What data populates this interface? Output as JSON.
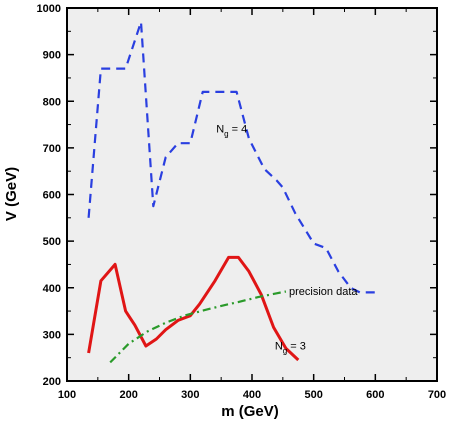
{
  "chart_data": {
    "type": "line",
    "xlabel": "m (GeV)",
    "ylabel": "V (GeV)",
    "xlim": [
      100,
      700
    ],
    "ylim": [
      200,
      1000
    ],
    "xticks": [
      100,
      200,
      300,
      400,
      500,
      600,
      700
    ],
    "yticks": [
      200,
      300,
      400,
      500,
      600,
      700,
      800,
      900,
      1000
    ],
    "background": "#eeeeee",
    "grid": false,
    "series": [
      {
        "id": "ng4",
        "color": "#2a3fe0",
        "dash": "dashed",
        "x": [
          135,
          155,
          180,
          195,
          220,
          240,
          260,
          280,
          300,
          320,
          340,
          360,
          375,
          395,
          420,
          440,
          450,
          470,
          500,
          520,
          540,
          560,
          575,
          600
        ],
        "y": [
          550,
          870,
          870,
          870,
          970,
          575,
          680,
          710,
          710,
          820,
          820,
          820,
          820,
          720,
          655,
          630,
          615,
          560,
          495,
          485,
          435,
          400,
          390,
          390
        ]
      },
      {
        "id": "ng3",
        "color": "#e01515",
        "dash": "solid",
        "x": [
          135,
          155,
          178,
          195,
          210,
          228,
          245,
          260,
          280,
          300,
          315,
          340,
          362,
          378,
          395,
          415,
          435,
          455,
          475
        ],
        "y": [
          260,
          415,
          450,
          350,
          320,
          275,
          290,
          310,
          330,
          340,
          365,
          415,
          465,
          465,
          435,
          385,
          315,
          270,
          245
        ]
      },
      {
        "id": "precision",
        "color": "#2a9a2a",
        "dash": "dashdot",
        "x": [
          170,
          200,
          230,
          260,
          290,
          320,
          350,
          380,
          410,
          440,
          455
        ],
        "y": [
          240,
          280,
          306,
          325,
          340,
          351,
          361,
          370,
          380,
          388,
          392
        ]
      }
    ],
    "annotations": [
      {
        "text_main": "N",
        "text_sub": "g",
        "text_rest": " = 4",
        "x": 342,
        "y": 733
      },
      {
        "text_main": "",
        "text_sub": "",
        "text_rest": "precision data",
        "x": 460,
        "y": 384
      },
      {
        "text_main": "N",
        "text_sub": "g",
        "text_rest": " = 3",
        "x": 437,
        "y": 268
      }
    ]
  }
}
